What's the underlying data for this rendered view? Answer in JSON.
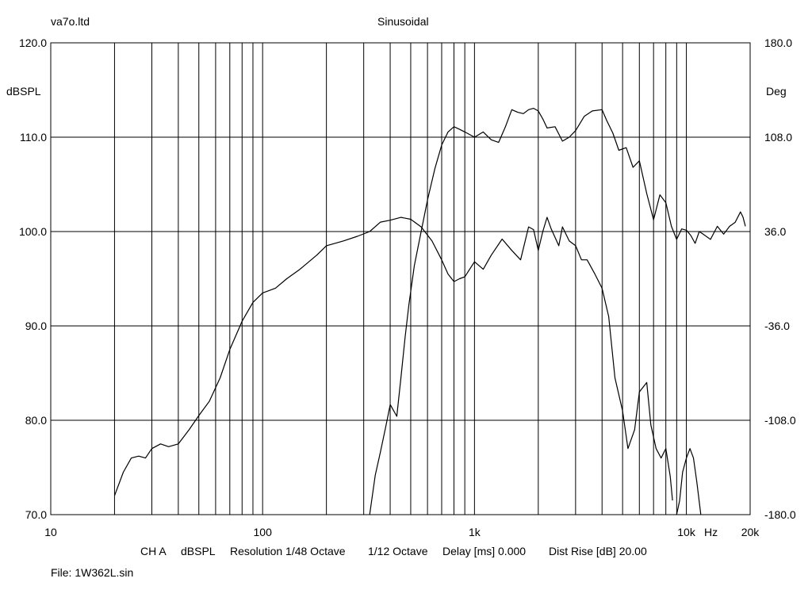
{
  "header": {
    "left_title": "va7o.ltd",
    "center_title": "Sinusoidal"
  },
  "footer": {
    "channel": "CH A",
    "units": "dBSPL",
    "resolution": "Resolution 1/48 Octave",
    "smoothing": "1/12 Octave",
    "delay": "Delay [ms] 0.000",
    "dist_rise": "Dist Rise [dB] 20.00",
    "file": "File: 1W362L.sin"
  },
  "chart_data": {
    "type": "line",
    "x_scale": "log",
    "xlim": [
      10,
      20000
    ],
    "ylim": [
      70,
      120
    ],
    "y2lim": [
      -180,
      180
    ],
    "ylabel": "dBSPL",
    "y2label": "Deg",
    "xunit": "Hz",
    "grid": true,
    "x_tick_labels": [
      {
        "value": 10,
        "label": "10"
      },
      {
        "value": 100,
        "label": "100"
      },
      {
        "value": 1000,
        "label": "1k"
      },
      {
        "value": 10000,
        "label": "10k"
      },
      {
        "value": 20000,
        "label": "20k"
      }
    ],
    "y_tick_labels": [
      {
        "value": 120,
        "label": "120.0"
      },
      {
        "value": 110,
        "label": "110.0"
      },
      {
        "value": 100,
        "label": "100.0"
      },
      {
        "value": 90,
        "label": "90.0"
      },
      {
        "value": 80,
        "label": "80.0"
      },
      {
        "value": 70,
        "label": "70.0"
      }
    ],
    "y2_tick_labels": [
      {
        "value": 180,
        "label": "180.0"
      },
      {
        "value": 108,
        "label": "108.0"
      },
      {
        "value": 36,
        "label": "36.0"
      },
      {
        "value": -36,
        "label": "-36.0"
      },
      {
        "value": -108,
        "label": "-108.0"
      },
      {
        "value": -180,
        "label": "-180.0"
      }
    ],
    "series": [
      {
        "axis": "left",
        "x": [
          20,
          22,
          24,
          26,
          28,
          30,
          33,
          36,
          40,
          45,
          50,
          56,
          63,
          70,
          80,
          90,
          100,
          115,
          130,
          150,
          180,
          200,
          240,
          280,
          320,
          360,
          400,
          450,
          500,
          560,
          630,
          700,
          750,
          800,
          850,
          900,
          1000,
          1100,
          1200,
          1350,
          1500,
          1650,
          1800,
          1900,
          2000,
          2100,
          2200,
          2300,
          2500,
          2600,
          2800,
          3000,
          3200,
          3400,
          3700,
          4000,
          4300,
          4600,
          5000,
          5300,
          5700,
          6000,
          6500,
          6800,
          7200,
          7600,
          8000,
          8400,
          8600
        ],
        "y": [
          72.0,
          74.5,
          76.0,
          76.2,
          76.0,
          77.0,
          77.5,
          77.2,
          77.5,
          79.0,
          80.5,
          82.0,
          84.5,
          87.5,
          90.5,
          92.5,
          93.5,
          94.0,
          95.0,
          96.0,
          97.5,
          98.5,
          99.0,
          99.5,
          100.0,
          101.0,
          101.2,
          101.5,
          101.3,
          100.5,
          99.0,
          97.0,
          95.5,
          94.7,
          95.0,
          95.2,
          96.8,
          96.0,
          97.5,
          99.2,
          98.0,
          97.0,
          100.5,
          100.2,
          98.0,
          100.0,
          101.5,
          100.3,
          98.5,
          100.5,
          99.0,
          98.5,
          97.0,
          97.0,
          95.5,
          94.0,
          91.0,
          84.5,
          81.0,
          77.0,
          79.0,
          83.0,
          84.0,
          79.5,
          77.0,
          76.0,
          77.0,
          74.0,
          71.5
        ]
      },
      {
        "axis": "left",
        "x": [
          9000,
          9300,
          9600,
          10000,
          10400,
          10800,
          11200,
          11700
        ],
        "y": [
          70.0,
          71.5,
          74.5,
          76.0,
          77.0,
          76.0,
          73.5,
          70.0
        ]
      },
      {
        "axis": "right",
        "x": [
          320,
          340,
          360,
          380,
          400,
          430,
          450,
          470,
          490,
          520,
          560,
          600,
          650,
          700,
          750,
          800,
          850,
          900,
          1000,
          1100,
          1200,
          1300,
          1400,
          1500,
          1600,
          1700,
          1800,
          1900,
          2000,
          2100,
          2200,
          2400,
          2600,
          2800,
          3000,
          3300,
          3600,
          4000,
          4200,
          4500,
          4800,
          5200,
          5600,
          6000,
          6500,
          7000,
          7500,
          8000,
          8500,
          9000,
          9500,
          10000,
          10500,
          11000,
          11500,
          12000,
          13000,
          14000,
          15000,
          16000,
          17000,
          18000,
          18500,
          19000
        ],
        "y": [
          -180,
          -150,
          -132,
          -114,
          -96,
          -105,
          -75,
          -45,
          -20,
          10,
          36,
          60,
          84,
          102,
          112,
          116,
          114,
          112,
          108,
          112,
          106,
          104,
          116,
          129,
          127,
          126,
          129,
          130,
          128,
          122,
          115,
          116,
          105,
          108,
          113,
          124,
          128,
          129,
          121,
          111,
          98,
          100,
          85,
          90,
          65,
          45,
          64,
          58,
          40,
          30,
          38,
          37,
          33,
          27,
          36,
          34,
          30,
          40,
          34,
          40,
          43,
          51,
          47,
          40
        ]
      }
    ]
  }
}
